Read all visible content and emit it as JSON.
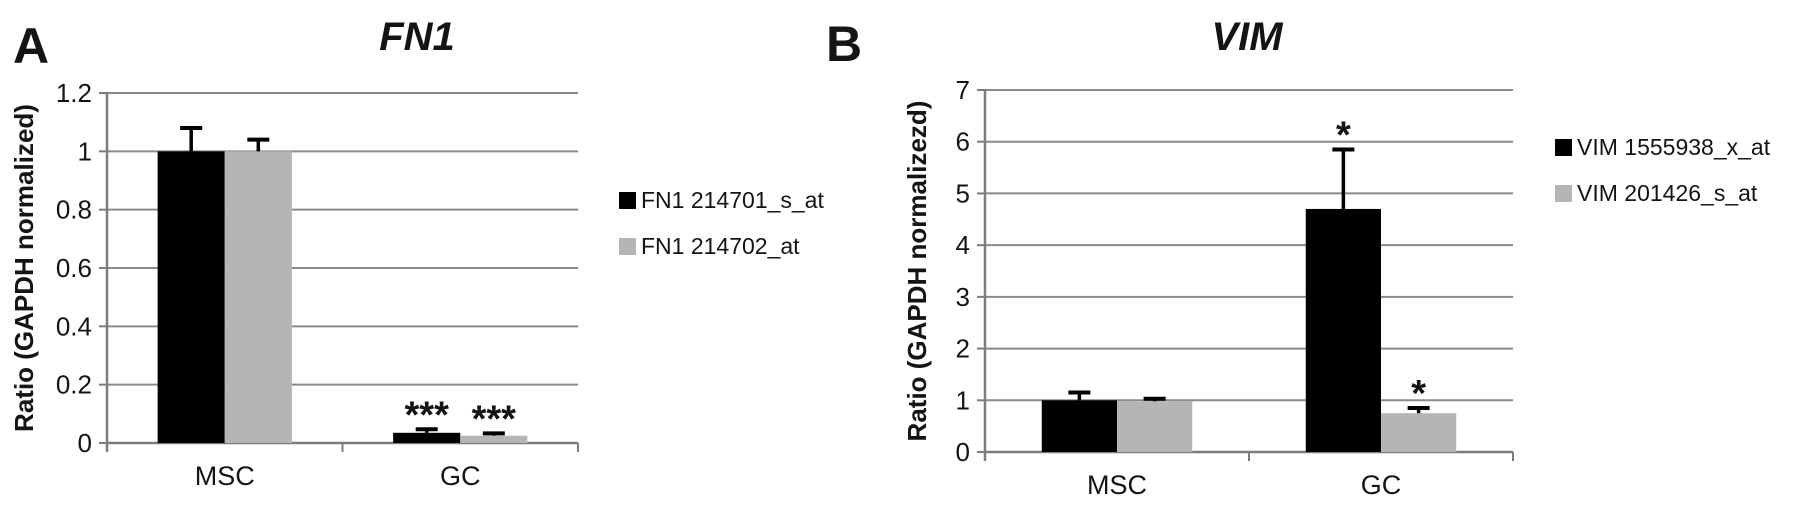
{
  "figure_title": "",
  "chart_data": [
    {
      "type": "bar",
      "panel_label": "A",
      "title": "FN1",
      "ylabel": "Ratio (GAPDH normalized)",
      "xlabel": "",
      "categories": [
        "MSC",
        "GC"
      ],
      "series": [
        {
          "name": "FN1 214701_s_at",
          "color": "#000000",
          "values": [
            1.0,
            0.035
          ],
          "errors_plus": [
            0.08,
            0.012
          ],
          "significance": [
            "",
            "***"
          ]
        },
        {
          "name": "FN1 214702_at",
          "color": "#b5b5b5",
          "values": [
            1.0,
            0.025
          ],
          "errors_plus": [
            0.04,
            0.008
          ],
          "significance": [
            "",
            "***"
          ]
        }
      ],
      "ylim": [
        0,
        1.2
      ],
      "ytick_labels": [
        "0",
        "0.2",
        "0.4",
        "0.6",
        "0.8",
        "1",
        "1.2"
      ],
      "grid": true,
      "legend_position": "right"
    },
    {
      "type": "bar",
      "panel_label": "B",
      "title": "VIM",
      "ylabel": "Ratio (GAPDH normalizezd)",
      "xlabel": "",
      "categories": [
        "MSC",
        "GC"
      ],
      "series": [
        {
          "name": "VIM 1555938_x_at",
          "color": "#000000",
          "values": [
            1.0,
            4.7
          ],
          "errors_plus": [
            0.15,
            1.15
          ],
          "significance": [
            "",
            "*"
          ]
        },
        {
          "name": "VIM 201426_s_at",
          "color": "#b5b5b5",
          "values": [
            0.98,
            0.75
          ],
          "errors_plus": [
            0.05,
            0.1
          ],
          "significance": [
            "",
            "*"
          ]
        }
      ],
      "ylim": [
        0,
        7
      ],
      "ytick_labels": [
        "0",
        "1",
        "2",
        "3",
        "4",
        "5",
        "6",
        "7"
      ],
      "grid": true,
      "legend_position": "right"
    }
  ],
  "colors": {
    "bar_black": "#000000",
    "bar_gray": "#b5b5b5",
    "gridline": "#8a8a8a",
    "axis": "#7d7d7d",
    "text": "#141414"
  }
}
